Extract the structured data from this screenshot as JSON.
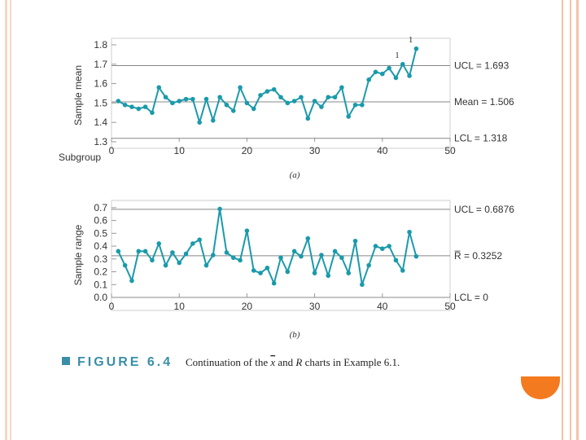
{
  "colors": {
    "series": "#1a9aab",
    "border_peach": "#f4c2a8",
    "accent_orange": "#f47a20",
    "caption_title": "#3a8ea8",
    "control_line": "#888888"
  },
  "decor": {
    "circle_icon": "half-circle-orange"
  },
  "chart_data": [
    {
      "type": "line",
      "panel": "(a)",
      "ylabel": "Sample mean",
      "xlabel": "Subgroup",
      "x_ticks": [
        0,
        10,
        20,
        30,
        40,
        50
      ],
      "y_ticks": [
        "1.3",
        "1.4",
        "1.5",
        "1.6",
        "1.7",
        "1.8"
      ],
      "xlim": [
        0,
        50
      ],
      "ylim": [
        1.3,
        1.8
      ],
      "control_limits": [
        {
          "label": "UCL = 1.693",
          "value": 1.693
        },
        {
          "label": "Mean = 1.506",
          "value": 1.506
        },
        {
          "label": "LCL = 1.318",
          "value": 1.318
        }
      ],
      "out_of_control_markers": [
        {
          "text": "1",
          "subgroup": 43
        },
        {
          "text": "1",
          "subgroup": 45
        }
      ],
      "x": [
        1,
        2,
        3,
        4,
        5,
        6,
        7,
        8,
        9,
        10,
        11,
        12,
        13,
        14,
        15,
        16,
        17,
        18,
        19,
        20,
        21,
        22,
        23,
        24,
        25,
        26,
        27,
        28,
        29,
        30,
        31,
        32,
        33,
        34,
        35,
        36,
        37,
        38,
        39,
        40,
        41,
        42,
        43,
        44,
        45
      ],
      "values": [
        1.51,
        1.49,
        1.48,
        1.47,
        1.48,
        1.45,
        1.58,
        1.53,
        1.5,
        1.51,
        1.52,
        1.52,
        1.4,
        1.52,
        1.41,
        1.53,
        1.49,
        1.46,
        1.58,
        1.5,
        1.47,
        1.54,
        1.56,
        1.57,
        1.53,
        1.5,
        1.51,
        1.53,
        1.42,
        1.51,
        1.48,
        1.53,
        1.53,
        1.58,
        1.43,
        1.49,
        1.49,
        1.62,
        1.66,
        1.65,
        1.68,
        1.63,
        1.7,
        1.64,
        1.78
      ]
    },
    {
      "type": "line",
      "panel": "(b)",
      "ylabel": "Sample range",
      "x_ticks": [
        0,
        10,
        20,
        30,
        40,
        50
      ],
      "y_ticks": [
        "0.0",
        "0.1",
        "0.2",
        "0.3",
        "0.4",
        "0.5",
        "0.6",
        "0.7"
      ],
      "xlim": [
        0,
        50
      ],
      "ylim": [
        0,
        0.75
      ],
      "control_limits": [
        {
          "label": "UCL = 0.6876",
          "value": 0.6876
        },
        {
          "label": "R̅ = 0.3252",
          "value": 0.3252
        },
        {
          "label": "LCL = 0",
          "value": 0
        }
      ],
      "x": [
        1,
        2,
        3,
        4,
        5,
        6,
        7,
        8,
        9,
        10,
        11,
        12,
        13,
        14,
        15,
        16,
        17,
        18,
        19,
        20,
        21,
        22,
        23,
        24,
        25,
        26,
        27,
        28,
        29,
        30,
        31,
        32,
        33,
        34,
        35,
        36,
        37,
        38,
        39,
        40,
        41,
        42,
        43,
        44,
        45
      ],
      "values": [
        0.36,
        0.25,
        0.13,
        0.36,
        0.36,
        0.29,
        0.42,
        0.25,
        0.35,
        0.27,
        0.34,
        0.42,
        0.45,
        0.25,
        0.33,
        0.69,
        0.35,
        0.31,
        0.29,
        0.52,
        0.21,
        0.19,
        0.23,
        0.11,
        0.31,
        0.2,
        0.36,
        0.32,
        0.46,
        0.19,
        0.33,
        0.17,
        0.36,
        0.31,
        0.19,
        0.44,
        0.1,
        0.25,
        0.4,
        0.38,
        0.4,
        0.29,
        0.21,
        0.51,
        0.32
      ]
    }
  ],
  "caption": {
    "title": "FIGURE 6.4",
    "text_pre": "Continuation of the ",
    "xbar": "x",
    "text_mid": " and ",
    "r_symbol": "R",
    "text_post": " charts in Example 6.1."
  }
}
